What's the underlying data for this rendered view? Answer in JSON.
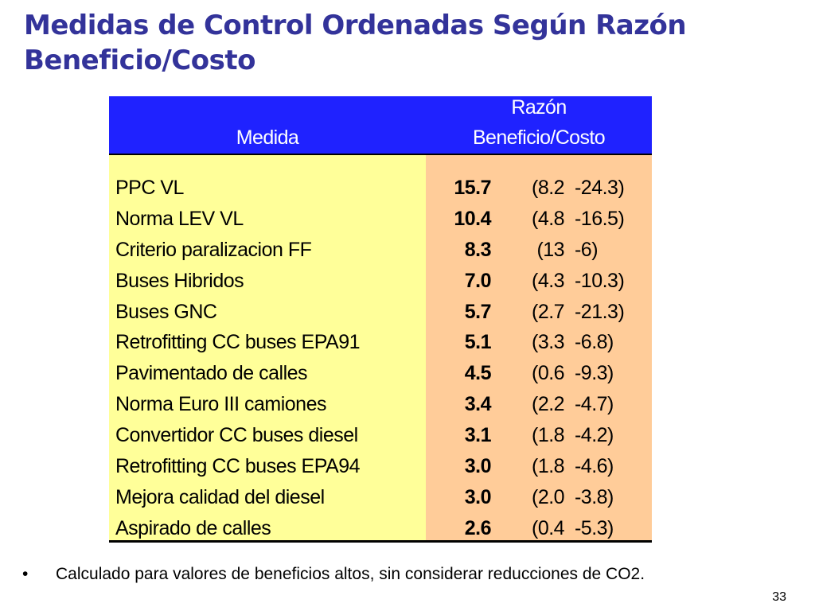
{
  "title": {
    "line1": "Medidas de Control Ordenadas Según Razón",
    "line2": "Beneficio/Costo"
  },
  "table": {
    "header": {
      "medida": "Medida",
      "razon_line1": "Razón",
      "razon_line2": "Beneficio/Costo"
    },
    "rows": [
      {
        "medida": "PPC VL",
        "valor": "15.7",
        "intervalo": "(8.2  -24.3)"
      },
      {
        "medida": "Norma LEV VL",
        "valor": "10.4",
        "intervalo": "(4.8  -16.5)"
      },
      {
        "medida": "Criterio paralizacion FF",
        "valor": "8.3",
        "intervalo": " (13  -6)"
      },
      {
        "medida": "Buses Hibridos",
        "valor": "7.0",
        "intervalo": "(4.3  -10.3)"
      },
      {
        "medida": "Buses GNC",
        "valor": "5.7",
        "intervalo": "(2.7  -21.3)"
      },
      {
        "medida": "Retrofitting CC buses EPA91",
        "valor": "5.1",
        "intervalo": "(3.3  -6.8)"
      },
      {
        "medida": "Pavimentado de calles",
        "valor": "4.5",
        "intervalo": "(0.6  -9.3)"
      },
      {
        "medida": "Norma Euro III camiones",
        "valor": "3.4",
        "intervalo": "(2.2  -4.7)"
      },
      {
        "medida": "Convertidor CC buses diesel",
        "valor": "3.1",
        "intervalo": "(1.8  -4.2)"
      },
      {
        "medida": "Retrofitting CC buses EPA94",
        "valor": "3.0",
        "intervalo": "(1.8  -4.6)"
      },
      {
        "medida": "Mejora calidad del diesel",
        "valor": "3.0",
        "intervalo": "(2.0  -3.8)"
      },
      {
        "medida": "Aspirado de calles",
        "valor": "2.6",
        "intervalo": "(0.4  -5.3)"
      }
    ]
  },
  "footnote": {
    "bullet": "•",
    "text": "Calculado para valores de beneficios altos, sin considerar reducciones de CO2."
  },
  "page_number": "33",
  "colors": {
    "title": "#33339a",
    "header_bg": "#1f22ff",
    "medida_bg": "#ffff99",
    "razon_bg": "#ffcc99"
  }
}
